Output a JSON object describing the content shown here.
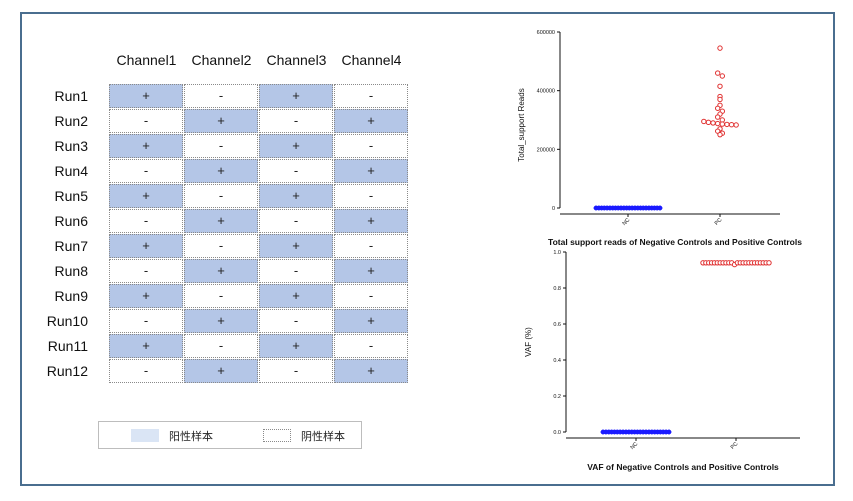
{
  "table": {
    "columns": [
      "Channel1",
      "Channel2",
      "Channel3",
      "Channel4"
    ],
    "rows": [
      {
        "label": "Run1",
        "cells": [
          "+",
          "-",
          "+",
          "-"
        ]
      },
      {
        "label": "Run2",
        "cells": [
          "-",
          "+",
          "-",
          "+"
        ]
      },
      {
        "label": "Run3",
        "cells": [
          "+",
          "-",
          "+",
          "-"
        ]
      },
      {
        "label": "Run4",
        "cells": [
          "-",
          "+",
          "-",
          "+"
        ]
      },
      {
        "label": "Run5",
        "cells": [
          "+",
          "-",
          "+",
          "-"
        ]
      },
      {
        "label": "Run6",
        "cells": [
          "-",
          "+",
          "-",
          "+"
        ]
      },
      {
        "label": "Run7",
        "cells": [
          "+",
          "-",
          "+",
          "-"
        ]
      },
      {
        "label": "Run8",
        "cells": [
          "-",
          "+",
          "-",
          "+"
        ]
      },
      {
        "label": "Run9",
        "cells": [
          "+",
          "-",
          "+",
          "-"
        ]
      },
      {
        "label": "Run10",
        "cells": [
          "-",
          "+",
          "-",
          "+"
        ]
      },
      {
        "label": "Run11",
        "cells": [
          "+",
          "-",
          "+",
          "-"
        ]
      },
      {
        "label": "Run12",
        "cells": [
          "-",
          "+",
          "-",
          "+"
        ]
      }
    ],
    "positive_color": "#b4c6e7"
  },
  "legend": {
    "items": [
      {
        "label": "阳性样本",
        "color": "#dae5f5"
      },
      {
        "label": "阴性样本",
        "color": "#ffffff"
      }
    ]
  },
  "chart_data": [
    {
      "type": "scatter",
      "title": "Total support reads of Negative Controls and Positive Controls",
      "ylabel": "Total_support Reads",
      "xlabel": "",
      "categories": [
        "NC",
        "PC"
      ],
      "ylim": [
        0,
        600000
      ],
      "yticks": [
        0,
        200000,
        400000,
        600000
      ],
      "grid": false,
      "series": [
        {
          "category": "NC",
          "color": "#1a1aff",
          "marker": "filled-circle",
          "values": [
            0,
            0,
            0,
            0,
            0,
            0,
            0,
            0,
            0,
            0,
            0,
            0,
            0,
            0,
            0,
            0,
            0,
            0,
            0,
            0,
            0,
            0,
            0,
            0
          ]
        },
        {
          "category": "PC",
          "color": "#e03030",
          "marker": "open-circle",
          "values": [
            545000,
            460000,
            450000,
            415000,
            380000,
            370000,
            350000,
            340000,
            330000,
            320000,
            310000,
            300000,
            295000,
            292000,
            290000,
            288000,
            286000,
            285000,
            284000,
            283000,
            270000,
            262000,
            255000,
            250000
          ]
        }
      ]
    },
    {
      "type": "scatter",
      "title": "VAF of Negative Controls and Positive Controls",
      "ylabel": "VAF (%)",
      "xlabel": "",
      "categories": [
        "NC",
        "PC"
      ],
      "ylim": [
        0,
        1.0
      ],
      "yticks": [
        0.0,
        0.2,
        0.4,
        0.6,
        0.8,
        1.0
      ],
      "ytick_labels": [
        "0.0",
        "0.2",
        "0.4",
        "0.6",
        "0.8",
        "1.0"
      ],
      "grid": false,
      "series": [
        {
          "category": "NC",
          "color": "#1a1aff",
          "marker": "filled-circle",
          "values": [
            0,
            0,
            0,
            0,
            0,
            0,
            0,
            0,
            0,
            0,
            0,
            0,
            0,
            0,
            0,
            0,
            0,
            0,
            0,
            0,
            0,
            0,
            0,
            0
          ]
        },
        {
          "category": "PC",
          "color": "#e03030",
          "marker": "open-circle",
          "values": [
            0.94,
            0.94,
            0.94,
            0.94,
            0.94,
            0.94,
            0.94,
            0.94,
            0.94,
            0.94,
            0.94,
            0.93,
            0.94,
            0.94,
            0.94,
            0.94,
            0.94,
            0.94,
            0.94,
            0.94,
            0.94,
            0.94,
            0.94,
            0.94
          ]
        }
      ]
    }
  ]
}
